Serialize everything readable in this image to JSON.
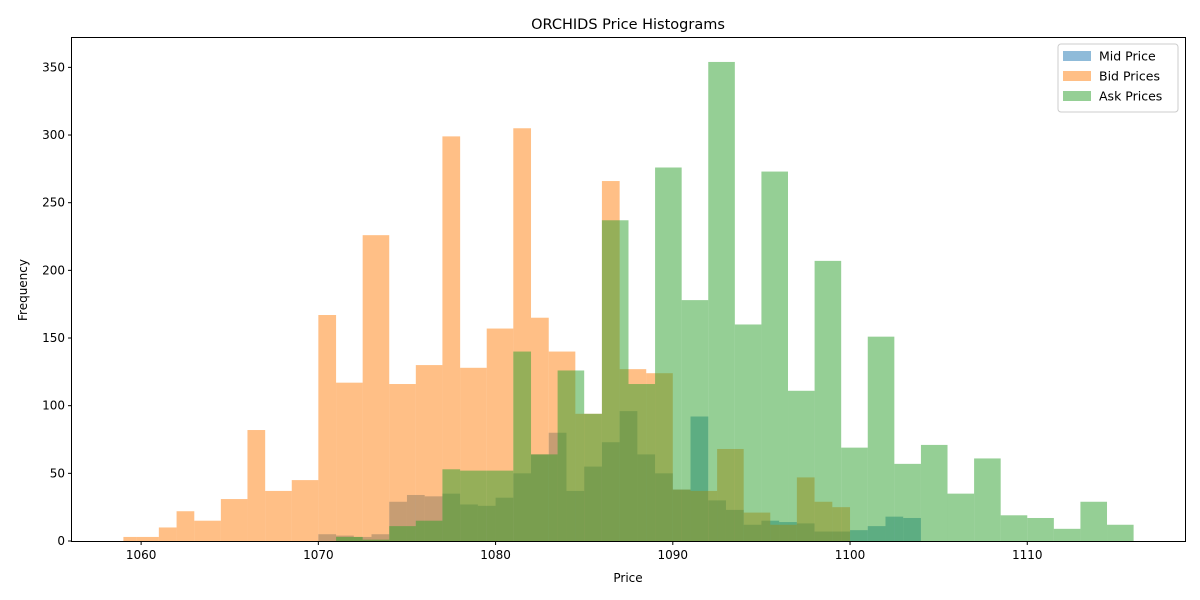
{
  "chart_data": {
    "type": "histogram",
    "title": "ORCHIDS Price Histograms",
    "xlabel": "Price",
    "ylabel": "Frequency",
    "xlim": [
      1056.1,
      1118.9
    ],
    "ylim": [
      0,
      371.7
    ],
    "xticks": [
      1060,
      1070,
      1080,
      1090,
      1100,
      1110
    ],
    "yticks": [
      0,
      50,
      100,
      150,
      200,
      250,
      300,
      350
    ],
    "grid": false,
    "legend_position": "top-right",
    "series": [
      {
        "name": "Mid Price",
        "color": "#1f77b4",
        "alpha": 0.5,
        "bins": [
          [
            1070.0,
            1071.0,
            5
          ],
          [
            1071.0,
            1072.0,
            4
          ],
          [
            1072.0,
            1073.0,
            3
          ],
          [
            1073.0,
            1074.0,
            5
          ],
          [
            1074.0,
            1075.0,
            29
          ],
          [
            1075.0,
            1076.0,
            34
          ],
          [
            1076.0,
            1077.0,
            33
          ],
          [
            1077.0,
            1078.0,
            35
          ],
          [
            1078.0,
            1079.0,
            27
          ],
          [
            1079.0,
            1080.0,
            26
          ],
          [
            1080.0,
            1081.0,
            32
          ],
          [
            1081.0,
            1082.0,
            50
          ],
          [
            1082.0,
            1083.0,
            64
          ],
          [
            1083.0,
            1084.0,
            80
          ],
          [
            1084.0,
            1085.0,
            37
          ],
          [
            1085.0,
            1086.0,
            55
          ],
          [
            1086.0,
            1087.0,
            73
          ],
          [
            1087.0,
            1088.0,
            96
          ],
          [
            1088.0,
            1089.0,
            64
          ],
          [
            1089.0,
            1090.0,
            50
          ],
          [
            1090.0,
            1091.0,
            38
          ],
          [
            1091.0,
            1092.0,
            92
          ],
          [
            1092.0,
            1093.0,
            30
          ],
          [
            1093.0,
            1094.0,
            23
          ],
          [
            1094.0,
            1095.0,
            12
          ],
          [
            1095.0,
            1096.0,
            15
          ],
          [
            1096.0,
            1097.0,
            14
          ],
          [
            1097.0,
            1098.0,
            13
          ],
          [
            1098.0,
            1099.0,
            7
          ],
          [
            1099.0,
            1100.0,
            7
          ],
          [
            1100.0,
            1101.0,
            8
          ],
          [
            1101.0,
            1102.0,
            11
          ],
          [
            1102.0,
            1103.0,
            18
          ],
          [
            1103.0,
            1104.0,
            17
          ]
        ]
      },
      {
        "name": "Bid Prices",
        "color": "#ff7f0e",
        "alpha": 0.5,
        "bins": [
          [
            1059.0,
            1059.75,
            3
          ],
          [
            1059.75,
            1061.0,
            3
          ],
          [
            1061.0,
            1062.0,
            10
          ],
          [
            1062.0,
            1063.0,
            22
          ],
          [
            1063.0,
            1064.5,
            15
          ],
          [
            1064.5,
            1066.0,
            31
          ],
          [
            1066.0,
            1067.0,
            82
          ],
          [
            1067.0,
            1068.5,
            37
          ],
          [
            1068.5,
            1070.0,
            45
          ],
          [
            1070.0,
            1071.0,
            167
          ],
          [
            1071.0,
            1072.5,
            117
          ],
          [
            1072.5,
            1074.0,
            226
          ],
          [
            1074.0,
            1075.5,
            116
          ],
          [
            1075.5,
            1077.0,
            130
          ],
          [
            1077.0,
            1078.0,
            299
          ],
          [
            1078.0,
            1079.5,
            128
          ],
          [
            1079.5,
            1081.0,
            157
          ],
          [
            1081.0,
            1082.0,
            305
          ],
          [
            1082.0,
            1083.0,
            165
          ],
          [
            1083.0,
            1084.5,
            140
          ],
          [
            1084.5,
            1086.0,
            94
          ],
          [
            1086.0,
            1087.0,
            266
          ],
          [
            1087.0,
            1088.5,
            127
          ],
          [
            1088.5,
            1090.0,
            124
          ],
          [
            1090.0,
            1091.0,
            38
          ],
          [
            1091.0,
            1092.5,
            37
          ],
          [
            1092.5,
            1094.0,
            68
          ],
          [
            1094.0,
            1095.5,
            21
          ],
          [
            1095.5,
            1097.0,
            12
          ],
          [
            1097.0,
            1098.0,
            47
          ],
          [
            1098.0,
            1099.0,
            29
          ],
          [
            1099.0,
            1100.0,
            25
          ]
        ]
      },
      {
        "name": "Ask Prices",
        "color": "#2ca02c",
        "alpha": 0.5,
        "bins": [
          [
            1071.0,
            1072.5,
            3
          ],
          [
            1072.5,
            1074.0,
            1
          ],
          [
            1074.0,
            1075.5,
            11
          ],
          [
            1075.5,
            1077.0,
            15
          ],
          [
            1077.0,
            1078.0,
            53
          ],
          [
            1078.0,
            1079.5,
            52
          ],
          [
            1079.5,
            1081.0,
            52
          ],
          [
            1081.0,
            1082.0,
            140
          ],
          [
            1082.0,
            1083.5,
            64
          ],
          [
            1083.5,
            1085.0,
            126
          ],
          [
            1085.0,
            1086.0,
            94
          ],
          [
            1086.0,
            1087.5,
            237
          ],
          [
            1087.5,
            1089.0,
            116
          ],
          [
            1089.0,
            1090.5,
            276
          ],
          [
            1090.5,
            1092.0,
            178
          ],
          [
            1092.0,
            1093.5,
            354
          ],
          [
            1093.5,
            1095.0,
            160
          ],
          [
            1095.0,
            1096.5,
            273
          ],
          [
            1096.5,
            1098.0,
            111
          ],
          [
            1098.0,
            1099.5,
            207
          ],
          [
            1099.5,
            1101.0,
            69
          ],
          [
            1101.0,
            1102.5,
            151
          ],
          [
            1102.5,
            1104.0,
            57
          ],
          [
            1104.0,
            1105.5,
            71
          ],
          [
            1105.5,
            1107.0,
            35
          ],
          [
            1107.0,
            1108.5,
            61
          ],
          [
            1108.5,
            1110.0,
            19
          ],
          [
            1110.0,
            1111.5,
            17
          ],
          [
            1111.5,
            1113.0,
            9
          ],
          [
            1113.0,
            1114.5,
            29
          ],
          [
            1114.5,
            1116.0,
            12
          ]
        ]
      }
    ]
  }
}
